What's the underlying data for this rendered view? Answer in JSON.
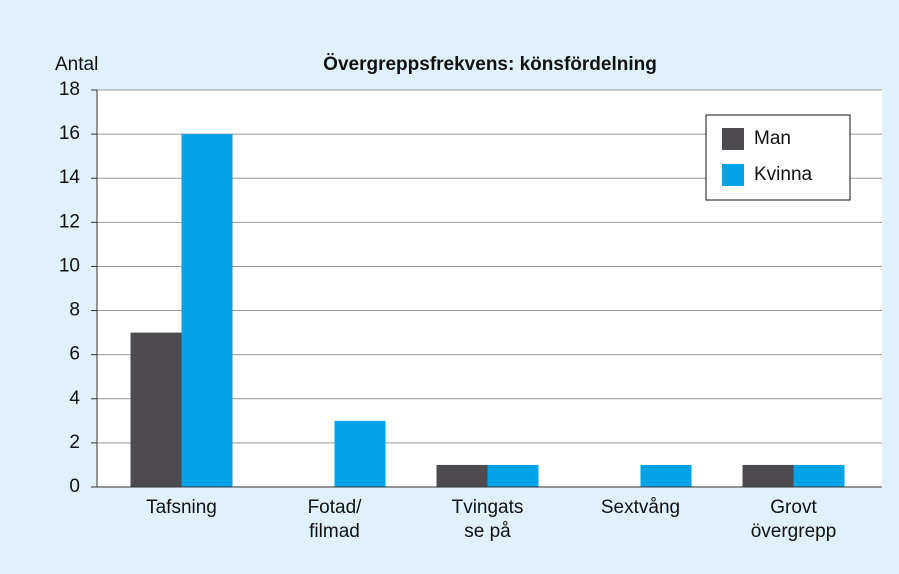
{
  "chart_data": {
    "type": "bar",
    "title": "Övergreppsfrekvens: könsfördelning",
    "y_label": "Antal",
    "categories": [
      "Tafsning",
      "Fotad/\nfilmad",
      "Tvingats\nse på",
      "Sextvång",
      "Grovt\növergrepp"
    ],
    "series": [
      {
        "name": "Man",
        "color": "#4d4b50",
        "values": [
          7,
          0,
          1,
          0,
          1
        ]
      },
      {
        "name": "Kvinna",
        "color": "#00a3e6",
        "values": [
          16,
          3,
          1,
          1,
          1
        ]
      }
    ],
    "ylim": [
      0,
      18
    ],
    "yticks": [
      0,
      2,
      4,
      6,
      8,
      10,
      12,
      14,
      16,
      18
    ],
    "grid": true,
    "legend": "upper right"
  }
}
